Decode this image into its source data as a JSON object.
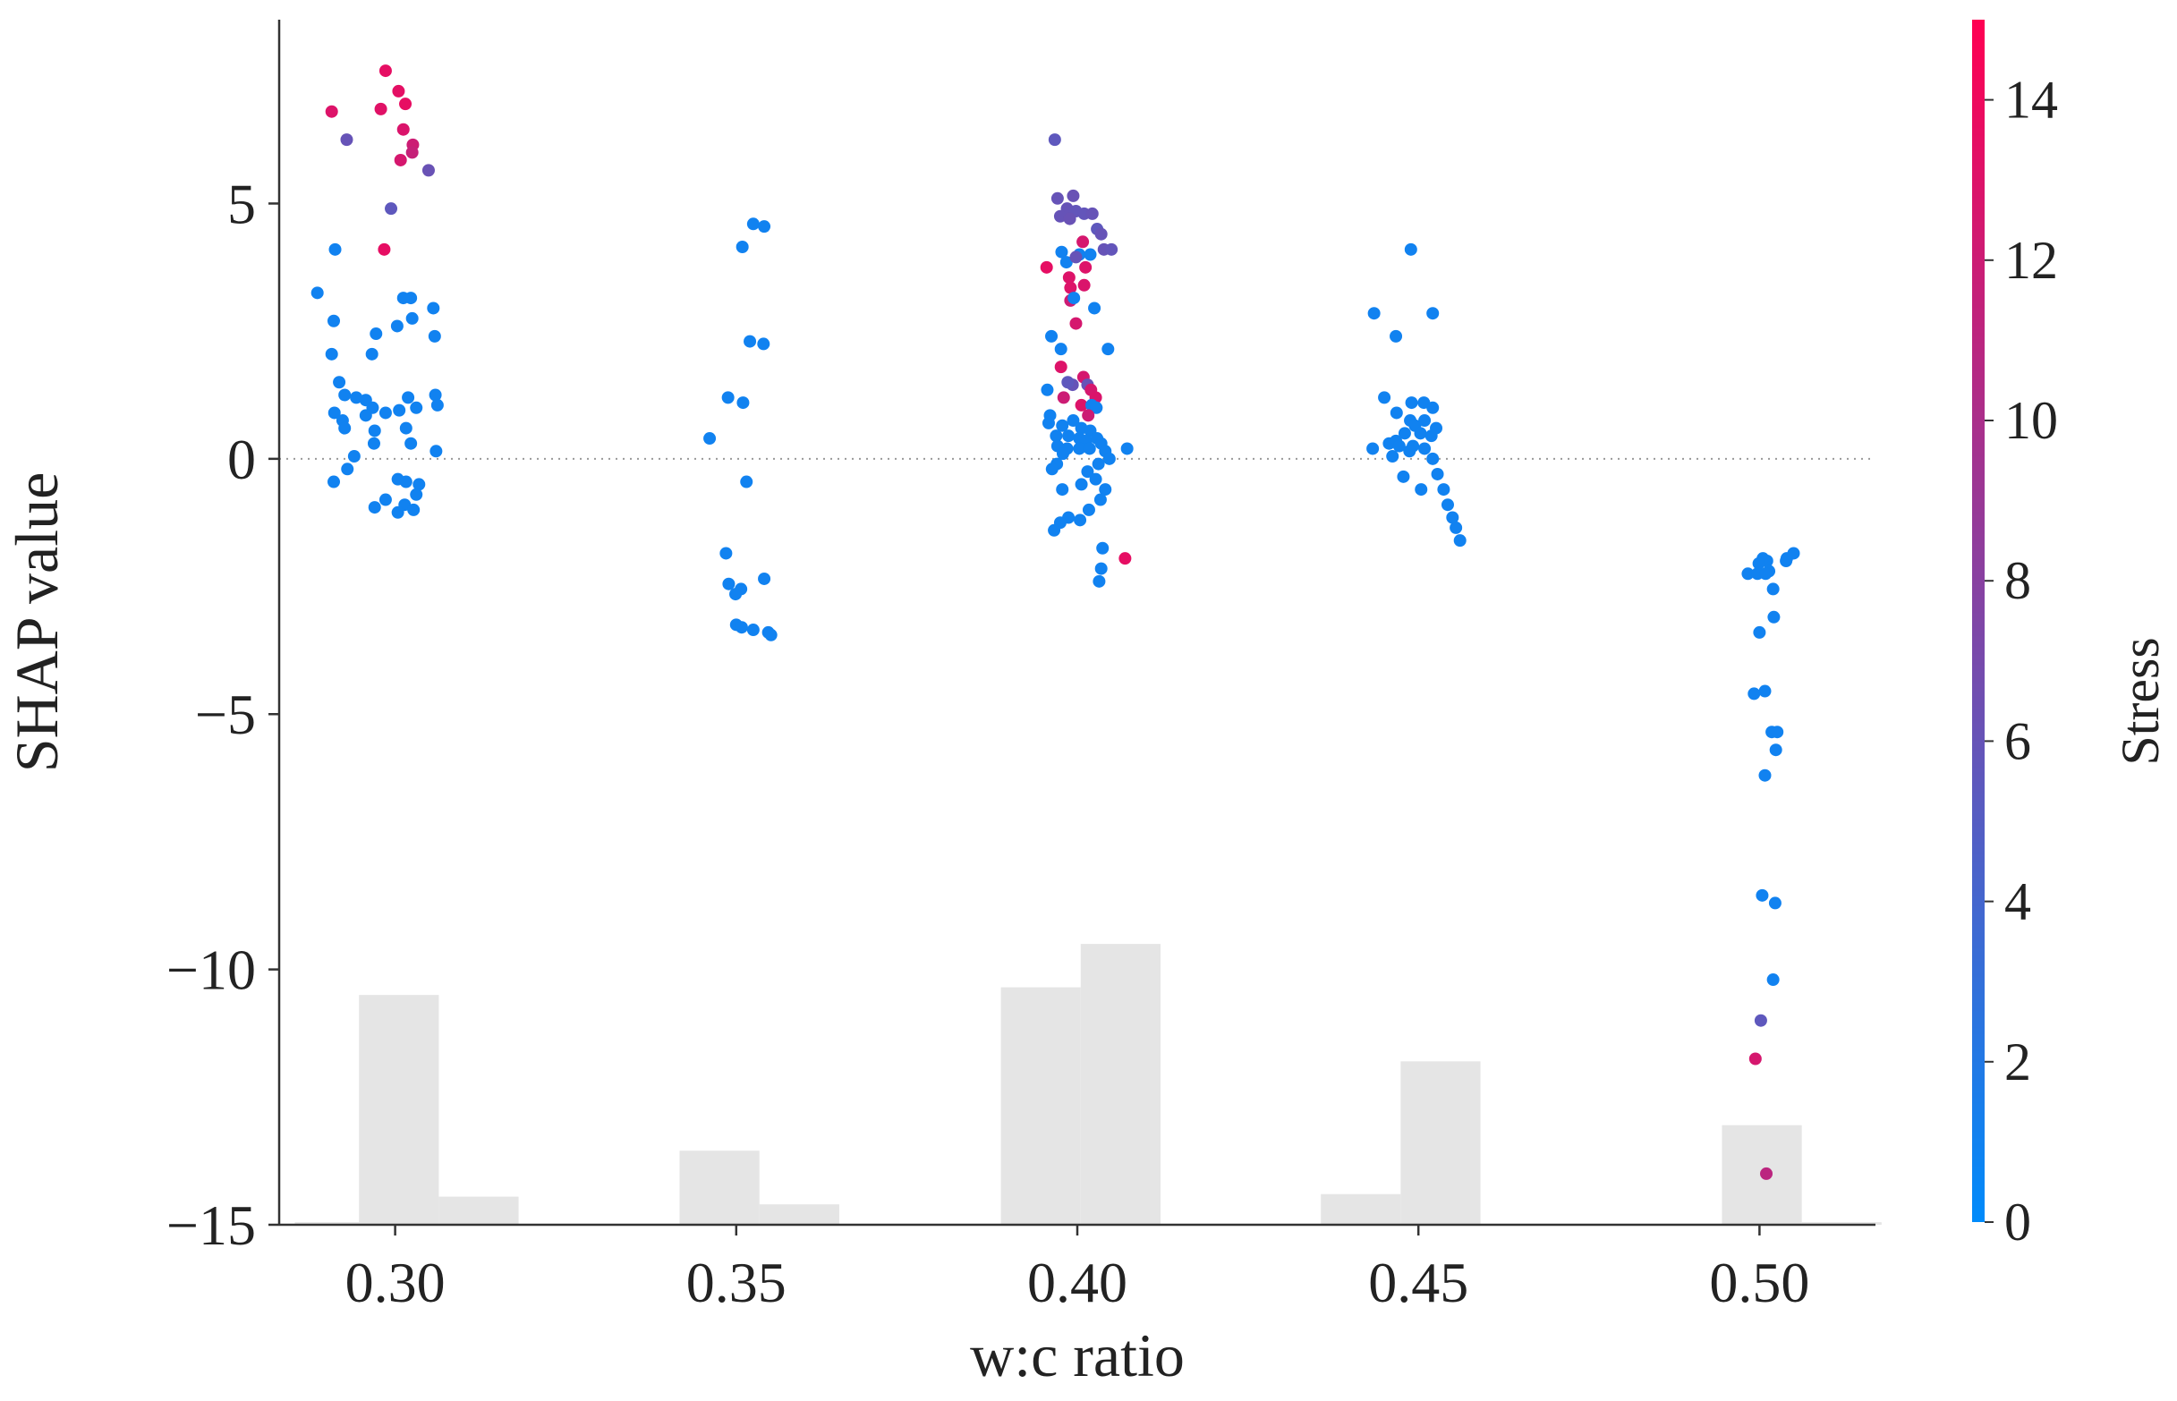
{
  "chart_data": {
    "type": "scatter",
    "title": "",
    "xlabel": "w:c ratio",
    "ylabel": "SHAP value",
    "xlim": [
      0.283,
      0.517
    ],
    "ylim": [
      -15,
      8.6
    ],
    "xticks": [
      0.3,
      0.35,
      0.4,
      0.45,
      0.5
    ],
    "xtick_labels": [
      "0.30",
      "0.35",
      "0.40",
      "0.45",
      "0.50"
    ],
    "yticks": [
      5,
      0,
      -5,
      -10,
      -15
    ],
    "ytick_labels": [
      "5",
      "0",
      "−5",
      "−10",
      "−15"
    ],
    "zero_line": true,
    "colorbar": {
      "label": "Stress",
      "range": [
        0,
        15
      ],
      "ticks": [
        0,
        2,
        4,
        6,
        8,
        10,
        12,
        14
      ],
      "tick_labels": [
        "0",
        "2",
        "4",
        "6",
        "8",
        "10",
        "12",
        "14"
      ],
      "colors": [
        "#008bfb",
        "#ff0052"
      ]
    },
    "histogram": {
      "baseline": -15,
      "bar_width": 0.0117,
      "color": "#e5e5e5",
      "bars": [
        {
          "x_left": 0.2853,
          "top": -14.95
        },
        {
          "x_left": 0.2947,
          "top": -10.5
        },
        {
          "x_left": 0.3064,
          "top": -14.45
        },
        {
          "x_left": 0.3417,
          "top": -13.55
        },
        {
          "x_left": 0.3534,
          "top": -14.6
        },
        {
          "x_left": 0.3888,
          "top": -10.35
        },
        {
          "x_left": 0.4005,
          "top": -9.5
        },
        {
          "x_left": 0.4357,
          "top": -14.4
        },
        {
          "x_left": 0.4474,
          "top": -11.8
        },
        {
          "x_left": 0.4945,
          "top": -13.05
        },
        {
          "x_left": 0.5062,
          "top": -14.95
        }
      ]
    },
    "points": [
      [
        0.2986,
        7.6,
        13.5
      ],
      [
        0.2979,
        6.85,
        13.2
      ],
      [
        0.3005,
        7.2,
        13.4
      ],
      [
        0.3015,
        6.95,
        13.6
      ],
      [
        0.2907,
        6.8,
        13.0
      ],
      [
        0.3012,
        6.45,
        12.8
      ],
      [
        0.3026,
        6.15,
        12.0
      ],
      [
        0.3025,
        6.0,
        11.6
      ],
      [
        0.3008,
        5.85,
        12.5
      ],
      [
        0.2929,
        6.25,
        6.0
      ],
      [
        0.3049,
        5.65,
        6.2
      ],
      [
        0.2994,
        4.9,
        5.5
      ],
      [
        0.2984,
        4.1,
        13.5
      ],
      [
        0.2912,
        4.1,
        1.0
      ],
      [
        0.2886,
        3.25,
        1.0
      ],
      [
        0.3023,
        3.15,
        1.0
      ],
      [
        0.3012,
        3.15,
        1.0
      ],
      [
        0.3056,
        2.95,
        1.0
      ],
      [
        0.291,
        2.7,
        1.0
      ],
      [
        0.2972,
        2.45,
        1.0
      ],
      [
        0.3003,
        2.6,
        1.0
      ],
      [
        0.3025,
        2.75,
        1.0
      ],
      [
        0.3058,
        2.4,
        1.0
      ],
      [
        0.2907,
        2.05,
        1.0
      ],
      [
        0.2966,
        2.05,
        1.0
      ],
      [
        0.2918,
        1.5,
        1.0
      ],
      [
        0.2926,
        1.25,
        1.0
      ],
      [
        0.2943,
        1.2,
        1.0
      ],
      [
        0.2957,
        1.15,
        1.0
      ],
      [
        0.2967,
        1.0,
        1.0
      ],
      [
        0.3019,
        1.2,
        1.0
      ],
      [
        0.3031,
        1.0,
        1.0
      ],
      [
        0.3059,
        1.25,
        1.0
      ],
      [
        0.3062,
        1.05,
        1.0
      ],
      [
        0.2911,
        0.9,
        1.0
      ],
      [
        0.2923,
        0.75,
        1.0
      ],
      [
        0.2957,
        0.85,
        1.0
      ],
      [
        0.2986,
        0.9,
        1.0
      ],
      [
        0.3006,
        0.95,
        1.0
      ],
      [
        0.3016,
        0.6,
        1.0
      ],
      [
        0.297,
        0.55,
        1.0
      ],
      [
        0.2926,
        0.6,
        1.0
      ],
      [
        0.2969,
        0.3,
        1.0
      ],
      [
        0.3023,
        0.3,
        1.0
      ],
      [
        0.306,
        0.15,
        1.0
      ],
      [
        0.294,
        0.05,
        1.0
      ],
      [
        0.293,
        -0.2,
        1.0
      ],
      [
        0.291,
        -0.45,
        1.0
      ],
      [
        0.3004,
        -0.4,
        1.0
      ],
      [
        0.3016,
        -0.45,
        1.0
      ],
      [
        0.3035,
        -0.5,
        1.0
      ],
      [
        0.3031,
        -0.7,
        1.0
      ],
      [
        0.2986,
        -0.8,
        1.0
      ],
      [
        0.297,
        -0.95,
        1.0
      ],
      [
        0.3014,
        -0.9,
        1.0
      ],
      [
        0.3027,
        -1.0,
        1.0
      ],
      [
        0.3004,
        -1.05,
        1.0
      ],
      [
        0.3525,
        4.6,
        1.0
      ],
      [
        0.3541,
        4.55,
        1.0
      ],
      [
        0.3509,
        4.15,
        1.0
      ],
      [
        0.352,
        2.3,
        1.0
      ],
      [
        0.354,
        2.25,
        1.0
      ],
      [
        0.3488,
        1.2,
        1.0
      ],
      [
        0.351,
        1.1,
        1.0
      ],
      [
        0.3461,
        0.4,
        1.0
      ],
      [
        0.3515,
        -0.45,
        1.0
      ],
      [
        0.3485,
        -1.85,
        1.0
      ],
      [
        0.3489,
        -2.45,
        1.0
      ],
      [
        0.3541,
        -2.35,
        1.0
      ],
      [
        0.3507,
        -2.55,
        1.0
      ],
      [
        0.3499,
        -2.65,
        1.0
      ],
      [
        0.35,
        -3.25,
        1.0
      ],
      [
        0.3508,
        -3.3,
        1.0
      ],
      [
        0.3525,
        -3.35,
        1.0
      ],
      [
        0.3547,
        -3.4,
        1.0
      ],
      [
        0.3551,
        -3.45,
        1.0
      ],
      [
        0.3967,
        6.25,
        5.5
      ],
      [
        0.3971,
        5.1,
        6.0
      ],
      [
        0.3994,
        5.15,
        6.2
      ],
      [
        0.3985,
        4.9,
        6.0
      ],
      [
        0.3998,
        4.85,
        5.8
      ],
      [
        0.401,
        4.8,
        5.8
      ],
      [
        0.4022,
        4.8,
        6.0
      ],
      [
        0.3975,
        4.75,
        6.0
      ],
      [
        0.3989,
        4.7,
        6.2
      ],
      [
        0.4029,
        4.5,
        5.5
      ],
      [
        0.4035,
        4.4,
        6.0
      ],
      [
        0.4039,
        4.1,
        6.0
      ],
      [
        0.405,
        4.1,
        5.8
      ],
      [
        0.4008,
        4.25,
        12.5
      ],
      [
        0.4003,
        4.0,
        1.0
      ],
      [
        0.4019,
        4.0,
        1.0
      ],
      [
        0.3977,
        4.05,
        1.0
      ],
      [
        0.3984,
        3.85,
        1.0
      ],
      [
        0.3998,
        3.95,
        6.0
      ],
      [
        0.3955,
        3.75,
        13.5
      ],
      [
        0.3988,
        3.55,
        13.0
      ],
      [
        0.4012,
        3.75,
        13.0
      ],
      [
        0.399,
        3.35,
        13.0
      ],
      [
        0.401,
        3.4,
        12.8
      ],
      [
        0.399,
        3.1,
        12.0
      ],
      [
        0.3998,
        2.65,
        12.5
      ],
      [
        0.4025,
        2.95,
        1.0
      ],
      [
        0.3995,
        3.15,
        1.0
      ],
      [
        0.3962,
        2.4,
        1.0
      ],
      [
        0.3976,
        2.15,
        1.0
      ],
      [
        0.4045,
        2.15,
        1.0
      ],
      [
        0.3976,
        1.8,
        13.0
      ],
      [
        0.4009,
        1.6,
        12.5
      ],
      [
        0.4015,
        1.45,
        6.0
      ],
      [
        0.3993,
        1.45,
        6.0
      ],
      [
        0.3986,
        1.5,
        5.5
      ],
      [
        0.402,
        1.35,
        12.5
      ],
      [
        0.4027,
        1.2,
        12.8
      ],
      [
        0.398,
        1.2,
        12.0
      ],
      [
        0.3956,
        1.35,
        1.0
      ],
      [
        0.4006,
        1.05,
        13.0
      ],
      [
        0.4021,
        1.05,
        1.0
      ],
      [
        0.4028,
        1.0,
        1.0
      ],
      [
        0.4016,
        0.85,
        12.0
      ],
      [
        0.396,
        0.85,
        1.0
      ],
      [
        0.3958,
        0.7,
        1.0
      ],
      [
        0.3978,
        0.65,
        1.0
      ],
      [
        0.3994,
        0.75,
        1.0
      ],
      [
        0.4006,
        0.6,
        1.0
      ],
      [
        0.4019,
        0.55,
        1.0
      ],
      [
        0.3969,
        0.45,
        1.0
      ],
      [
        0.3987,
        0.45,
        1.0
      ],
      [
        0.4003,
        0.4,
        1.0
      ],
      [
        0.4013,
        0.35,
        1.0
      ],
      [
        0.4029,
        0.4,
        1.0
      ],
      [
        0.4035,
        0.3,
        1.0
      ],
      [
        0.3971,
        0.25,
        1.0
      ],
      [
        0.3985,
        0.2,
        1.0
      ],
      [
        0.4003,
        0.2,
        1.0
      ],
      [
        0.4018,
        0.2,
        1.0
      ],
      [
        0.4041,
        0.15,
        1.0
      ],
      [
        0.4073,
        0.2,
        1.0
      ],
      [
        0.3979,
        0.1,
        1.0
      ],
      [
        0.4047,
        0.0,
        1.0
      ],
      [
        0.4031,
        -0.1,
        1.0
      ],
      [
        0.397,
        -0.1,
        1.0
      ],
      [
        0.3963,
        -0.2,
        1.0
      ],
      [
        0.4015,
        -0.25,
        1.0
      ],
      [
        0.4027,
        -0.4,
        1.0
      ],
      [
        0.4006,
        -0.5,
        1.0
      ],
      [
        0.3978,
        -0.6,
        1.0
      ],
      [
        0.4041,
        -0.6,
        1.0
      ],
      [
        0.4034,
        -0.8,
        1.0
      ],
      [
        0.4017,
        -1.0,
        1.0
      ],
      [
        0.3987,
        -1.15,
        1.0
      ],
      [
        0.4004,
        -1.2,
        1.0
      ],
      [
        0.3975,
        -1.25,
        1.0
      ],
      [
        0.3966,
        -1.4,
        1.0
      ],
      [
        0.4037,
        -1.75,
        1.0
      ],
      [
        0.4035,
        -2.15,
        1.0
      ],
      [
        0.4032,
        -2.4,
        1.0
      ],
      [
        0.407,
        -1.95,
        13.5
      ],
      [
        0.4489,
        4.1,
        1.0
      ],
      [
        0.4435,
        2.85,
        1.0
      ],
      [
        0.4521,
        2.85,
        1.0
      ],
      [
        0.4467,
        2.4,
        1.0
      ],
      [
        0.445,
        1.2,
        1.0
      ],
      [
        0.449,
        1.1,
        1.0
      ],
      [
        0.4508,
        1.1,
        1.0
      ],
      [
        0.4521,
        1.0,
        1.0
      ],
      [
        0.4468,
        0.9,
        1.0
      ],
      [
        0.4488,
        0.75,
        1.0
      ],
      [
        0.4509,
        0.75,
        1.0
      ],
      [
        0.4495,
        0.65,
        1.0
      ],
      [
        0.4526,
        0.6,
        1.0
      ],
      [
        0.4503,
        0.5,
        1.0
      ],
      [
        0.448,
        0.5,
        1.0
      ],
      [
        0.4519,
        0.45,
        1.0
      ],
      [
        0.4467,
        0.35,
        1.0
      ],
      [
        0.4457,
        0.3,
        1.0
      ],
      [
        0.4472,
        0.25,
        1.0
      ],
      [
        0.4492,
        0.25,
        1.0
      ],
      [
        0.4433,
        0.2,
        1.0
      ],
      [
        0.4509,
        0.2,
        1.0
      ],
      [
        0.4487,
        0.15,
        1.0
      ],
      [
        0.4462,
        0.05,
        1.0
      ],
      [
        0.4521,
        0.0,
        1.0
      ],
      [
        0.4478,
        -0.35,
        1.0
      ],
      [
        0.4528,
        -0.3,
        1.0
      ],
      [
        0.4504,
        -0.6,
        1.0
      ],
      [
        0.4537,
        -0.6,
        1.0
      ],
      [
        0.4543,
        -0.9,
        1.0
      ],
      [
        0.455,
        -1.15,
        1.0
      ],
      [
        0.4555,
        -1.35,
        1.0
      ],
      [
        0.4561,
        -1.6,
        1.0
      ],
      [
        0.4983,
        -2.25,
        1.0
      ],
      [
        0.5011,
        -2.0,
        1.0
      ],
      [
        0.5005,
        -1.95,
        1.0
      ],
      [
        0.4999,
        -2.05,
        1.0
      ],
      [
        0.5014,
        -2.2,
        1.0
      ],
      [
        0.4997,
        -2.25,
        1.0
      ],
      [
        0.5009,
        -2.25,
        1.0
      ],
      [
        0.5039,
        -2.0,
        1.0
      ],
      [
        0.504,
        -1.95,
        1.0
      ],
      [
        0.505,
        -1.85,
        1.0
      ],
      [
        0.502,
        -2.55,
        1.0
      ],
      [
        0.5021,
        -3.1,
        1.0
      ],
      [
        0.5,
        -3.4,
        1.0
      ],
      [
        0.4992,
        -4.6,
        1.0
      ],
      [
        0.5008,
        -4.55,
        1.0
      ],
      [
        0.5018,
        -5.35,
        1.0
      ],
      [
        0.5026,
        -5.35,
        1.0
      ],
      [
        0.5024,
        -5.7,
        1.0
      ],
      [
        0.5008,
        -6.2,
        1.0
      ],
      [
        0.5004,
        -8.55,
        1.0
      ],
      [
        0.5023,
        -8.7,
        1.0
      ],
      [
        0.502,
        -10.2,
        1.0
      ],
      [
        0.5002,
        -11.0,
        5.5
      ],
      [
        0.4994,
        -11.75,
        12.5
      ],
      [
        0.501,
        -14.0,
        11.0
      ]
    ]
  }
}
